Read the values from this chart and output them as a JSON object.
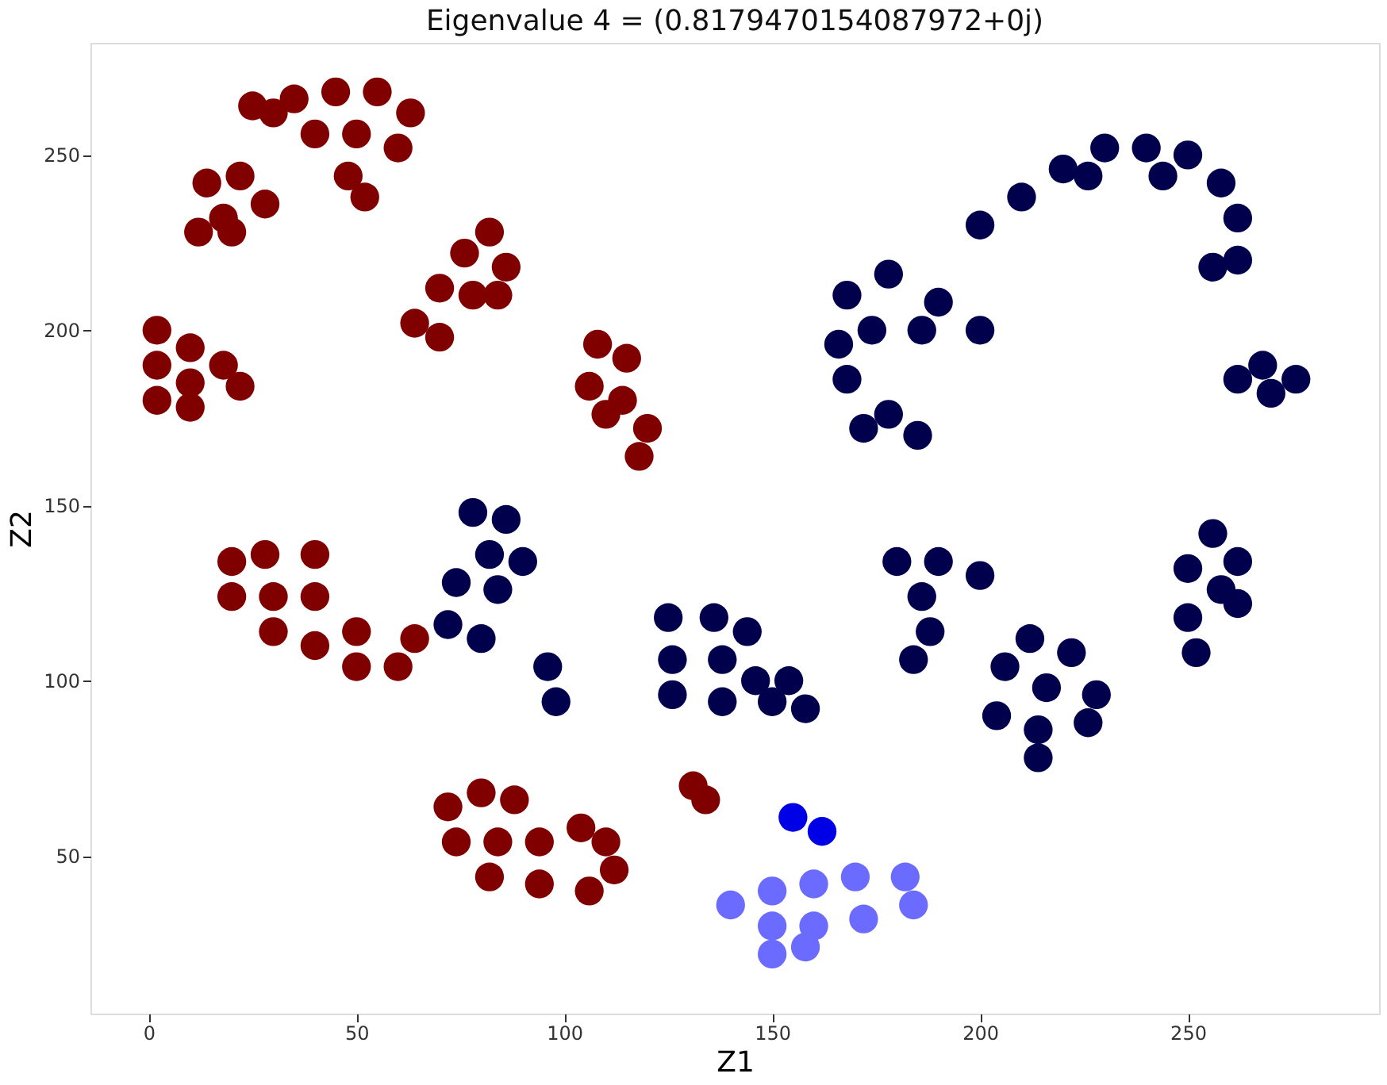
{
  "chart_data": {
    "type": "scatter",
    "title": "Eigenvalue 4 = (0.8179470154087972+0j)",
    "xlabel": "Z1",
    "ylabel": "Z2",
    "xlim": [
      -14,
      296
    ],
    "ylim": [
      5,
      282
    ],
    "xticks": [
      0,
      50,
      100,
      150,
      200,
      250
    ],
    "yticks": [
      50,
      100,
      150,
      200,
      250
    ],
    "grid": false,
    "marker": "circle",
    "series": [
      {
        "color": "#800000",
        "x": [
          25,
          35,
          45,
          55,
          63,
          40,
          50,
          60,
          48,
          52,
          30,
          14,
          22,
          28,
          18,
          12,
          20,
          2,
          2,
          2,
          10,
          10,
          18,
          22,
          10,
          82,
          86,
          76,
          70,
          78,
          64,
          70,
          84,
          108,
          115,
          106,
          114,
          120,
          118,
          110,
          20,
          28,
          40,
          20,
          30,
          40,
          30,
          40,
          50,
          50,
          60,
          64,
          72,
          80,
          88,
          74,
          84,
          94,
          104,
          82,
          94,
          106,
          112,
          110,
          131,
          134
        ],
        "values": [
          264,
          266,
          268,
          268,
          262,
          256,
          256,
          252,
          244,
          238,
          262,
          242,
          244,
          236,
          232,
          228,
          228,
          200,
          190,
          180,
          195,
          185,
          190,
          184,
          178,
          228,
          218,
          222,
          212,
          210,
          202,
          198,
          210,
          196,
          192,
          184,
          180,
          172,
          164,
          176,
          134,
          136,
          136,
          124,
          124,
          124,
          114,
          110,
          114,
          104,
          104,
          112,
          64,
          68,
          66,
          54,
          54,
          54,
          58,
          44,
          42,
          40,
          46,
          54,
          70,
          66
        ]
      },
      {
        "color": "#00004c",
        "x": [
          200,
          210,
          220,
          230,
          240,
          250,
          258,
          262,
          262,
          256,
          226,
          244,
          168,
          178,
          190,
          200,
          174,
          186,
          166,
          168,
          178,
          185,
          172,
          268,
          276,
          270,
          262,
          78,
          86,
          82,
          90,
          74,
          84,
          72,
          80,
          96,
          98,
          125,
          136,
          144,
          126,
          138,
          146,
          126,
          138,
          154,
          158,
          150,
          180,
          190,
          200,
          186,
          188,
          184,
          212,
          222,
          206,
          216,
          228,
          204,
          214,
          226,
          214,
          256,
          262,
          250,
          258,
          250,
          262,
          252
        ],
        "values": [
          230,
          238,
          246,
          252,
          252,
          250,
          242,
          232,
          220,
          218,
          244,
          244,
          210,
          216,
          208,
          200,
          200,
          200,
          196,
          186,
          176,
          170,
          172,
          190,
          186,
          182,
          186,
          148,
          146,
          136,
          134,
          128,
          126,
          116,
          112,
          104,
          94,
          118,
          118,
          114,
          106,
          106,
          100,
          96,
          94,
          100,
          92,
          94,
          134,
          134,
          130,
          124,
          114,
          106,
          112,
          108,
          104,
          98,
          96,
          90,
          86,
          88,
          78,
          142,
          134,
          132,
          126,
          118,
          122,
          108
        ]
      },
      {
        "color": "#0000e6",
        "x": [
          155,
          162
        ],
        "values": [
          61,
          57
        ]
      },
      {
        "color": "#6b6bff",
        "x": [
          140,
          150,
          160,
          170,
          182,
          150,
          160,
          172,
          184,
          150,
          158
        ],
        "values": [
          36,
          40,
          42,
          44,
          44,
          30,
          30,
          32,
          36,
          22,
          24
        ]
      }
    ]
  }
}
